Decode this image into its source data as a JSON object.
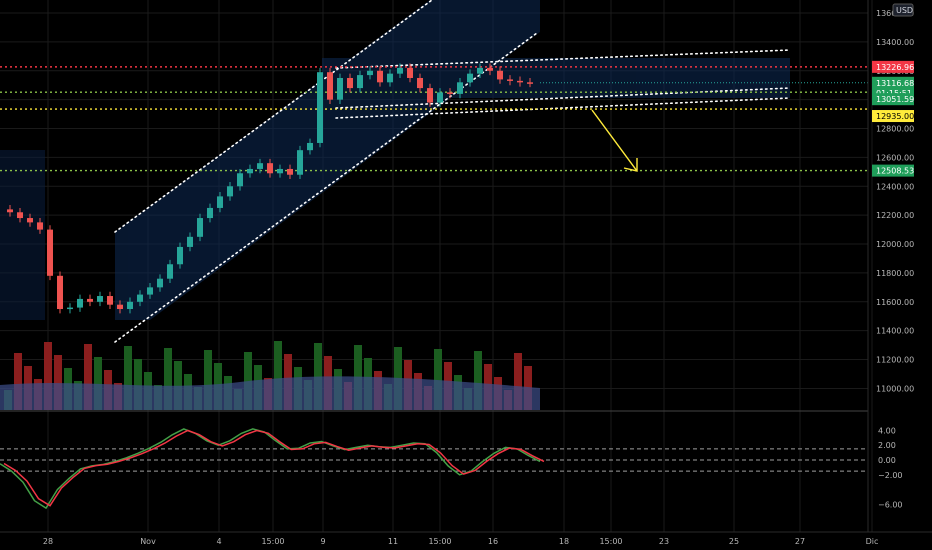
{
  "currency_badge": "USD",
  "chart_data": {
    "type": "candlestick",
    "y_ticks": [
      "13600.00",
      "13400.00",
      "13200.00",
      "13000.00",
      "12800.00",
      "12600.00",
      "12400.00",
      "12200.00",
      "12000.00",
      "11800.00",
      "11600.00",
      "11400.00",
      "11200.00",
      "11000.00"
    ],
    "x_ticks": [
      "28",
      "Nov",
      "4",
      "15:00",
      "9",
      "11",
      "15:00",
      "16",
      "18",
      "15:00",
      "23",
      "25",
      "27",
      "Dic"
    ],
    "osc_ticks": [
      "4.00",
      "2.00",
      "0.00",
      "−2.00",
      "−6.00"
    ],
    "price_tags": [
      {
        "name": "red-level",
        "text": "13226.96",
        "bg": "#f23645",
        "fg": "#ffffff"
      },
      {
        "name": "last-price",
        "text": "13116.68",
        "bg": "#1f9e5a",
        "fg": "#ffffff"
      },
      {
        "name": "countdown",
        "text": "01:15:51",
        "bg": "#1f9e5a",
        "fg": "#ffffff"
      },
      {
        "name": "green-level",
        "text": "13051.59",
        "bg": "#1f9e5a",
        "fg": "#ffffff"
      },
      {
        "name": "yellow-level",
        "text": "12935.00",
        "bg": "#ffeb3b",
        "fg": "#000000"
      },
      {
        "name": "target-level",
        "text": "12508.53",
        "bg": "#1f9e5a",
        "fg": "#ffffff"
      }
    ],
    "levels": {
      "red": 13226.96,
      "green_upper": 13051.59,
      "yellow": 12935.0,
      "target": 12508.53
    },
    "osc_levels": [
      1.5,
      0,
      -1.5
    ],
    "colors": {
      "up": "#26a69a",
      "down": "#ef5350",
      "channel": "#ffffff",
      "arrow": "#ffeb3b",
      "stoch_k": "#43a047",
      "stoch_d": "#f23645",
      "volume_up": "#1b5e20",
      "volume_down": "#8b1e1e"
    },
    "series": [
      {
        "name": "price",
        "values": [
          12220,
          12180,
          12150,
          12100,
          11780,
          11550,
          11560,
          11620,
          11600,
          11640,
          11580,
          11550,
          11600,
          11650,
          11700,
          11760,
          11860,
          11980,
          12050,
          12180,
          12250,
          12330,
          12400,
          12490,
          12520,
          12560,
          12490,
          12520,
          12480,
          12650,
          12700,
          13190,
          13000,
          13150,
          13080,
          13170,
          13200,
          13120,
          13180,
          13220,
          13150,
          13080,
          12980,
          13050,
          13040,
          13120,
          13180,
          13220,
          13200,
          13140,
          13130,
          13120,
          13117
        ]
      }
    ],
    "stochastic": [
      -0.5,
      -1.5,
      -3.0,
      -5.5,
      -6.5,
      -4.0,
      -2.5,
      -1.2,
      -0.8,
      -0.6,
      -0.2,
      0.3,
      0.9,
      1.6,
      2.4,
      3.4,
      4.2,
      3.6,
      2.6,
      2.0,
      2.6,
      3.6,
      4.2,
      3.8,
      2.6,
      1.5,
      1.6,
      2.3,
      2.5,
      1.9,
      1.4,
      1.7,
      2.0,
      1.8,
      1.7,
      2.0,
      2.3,
      2.2,
      1.0,
      -0.8,
      -2.0,
      -1.5,
      -0.2,
      0.9,
      1.7,
      1.5,
      0.6,
      -0.2
    ]
  }
}
